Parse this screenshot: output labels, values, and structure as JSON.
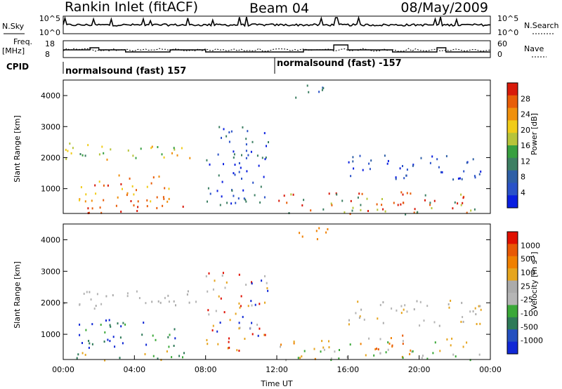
{
  "header": {
    "station": "Rankin Inlet (fitACF)",
    "beam": "Beam 04",
    "date": "08/May/2009"
  },
  "noise_panel": {
    "left_label": "N.Sky",
    "right_label": "N.Search",
    "left_ticks": [
      "10^5",
      "10^0"
    ],
    "right_ticks": [
      "10^5",
      "10^0"
    ]
  },
  "freq_panel": {
    "left_label_1": "Freq.",
    "left_label_2": "[MHz]",
    "right_label": "Nave",
    "left_ticks": [
      "18",
      "8"
    ],
    "right_ticks": [
      "60",
      "0"
    ]
  },
  "cpid": {
    "label": "CPID",
    "segments": [
      {
        "name": "normalsound (fast) 157",
        "start_hour": 0
      },
      {
        "name": "normalsound (fast) -157",
        "start_hour": 12
      }
    ]
  },
  "colors": {
    "power": [
      "#0a1fe0",
      "#2a52c8",
      "#2e5fa6",
      "#3d7f63",
      "#38a040",
      "#b7c43a",
      "#f1cc19",
      "#f0900c",
      "#e85d08",
      "#d81a0a"
    ],
    "velocity": [
      "#1028d6",
      "#2450c0",
      "#2e7a58",
      "#3aa838",
      "#b5b5b5",
      "#ababab",
      "#e6a51e",
      "#f08000",
      "#e85805",
      "#e01000"
    ]
  },
  "chart_data": [
    {
      "type": "heatmap",
      "name": "power_panel",
      "xlabel": "",
      "ylabel": "Slant Range [km]",
      "x_range_hours": [
        0,
        24
      ],
      "y_range_km": [
        200,
        4500
      ],
      "yticks": [
        "4000",
        "3000",
        "2000",
        "1000"
      ],
      "colorbar": {
        "label": "Power [dB]",
        "ticks": [
          "28",
          "24",
          "20",
          "16",
          "12",
          "8",
          "4"
        ]
      }
    },
    {
      "type": "heatmap",
      "name": "velocity_panel",
      "xlabel": "Time UT",
      "ylabel": "Slant Range [km]",
      "x_range_hours": [
        0,
        24
      ],
      "y_range_km": [
        200,
        4500
      ],
      "xticks": [
        "00:00",
        "04:00",
        "08:00",
        "12:00",
        "16:00",
        "20:00",
        "00:00"
      ],
      "yticks": [
        "4000",
        "3000",
        "2000",
        "1000"
      ],
      "colorbar": {
        "label": "Velocity [m s",
        "label_sup": "-1",
        "label_end": "]",
        "ticks": [
          "1000",
          "500",
          "100",
          "25",
          "-25",
          "-100",
          "-500",
          "-1000"
        ]
      }
    }
  ]
}
